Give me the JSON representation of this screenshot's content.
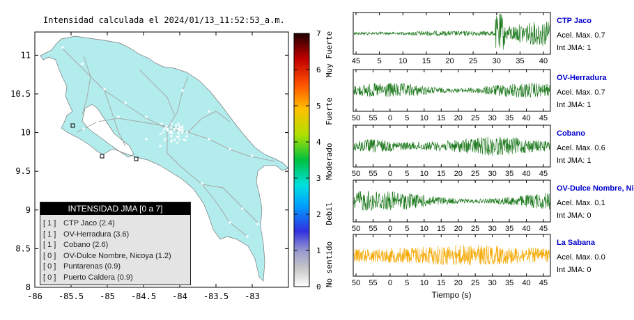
{
  "map_title": "Intensidad calculada el 2024/01/13_11:52:53_a.m.",
  "colors": {
    "land": "#b3ecec",
    "roads": "#a8a8a8",
    "waveform_green": "#1f7a1f",
    "waveform_orange": "#f5a800",
    "station_name": "#0000cc"
  },
  "map": {
    "x_ticks": [
      "-86",
      "-85.5",
      "-85",
      "-84.5",
      "-84",
      "-83.5",
      "-83"
    ],
    "y_ticks": [
      "11",
      "10.5",
      "10",
      "9.5",
      "9",
      "8.5",
      "8"
    ],
    "xlim": [
      -86,
      -82.5
    ],
    "ylim": [
      8,
      11.3
    ]
  },
  "colorbar": {
    "ticks": [
      "0",
      "1",
      "2",
      "3",
      "4",
      "5",
      "6",
      "7"
    ],
    "labels": [
      "No sentido",
      "Debil",
      "Moderado",
      "Fuerte",
      "Muy Fuerte"
    ]
  },
  "legend": {
    "title": "INTENSIDAD JMA [0 a 7]",
    "items": [
      {
        "level": "[ 1 ]",
        "name": "CTP Jaco (2.4)"
      },
      {
        "level": "[ 1 ]",
        "name": "OV-Herradura (3.6)"
      },
      {
        "level": "[ 1 ]",
        "name": "Cobano (2.6)"
      },
      {
        "level": "[ 0 ]",
        "name": "OV-Dulce Nombre, Nicoya (1.2)"
      },
      {
        "level": "[ 0 ]",
        "name": "Puntarenas (0.9)"
      },
      {
        "level": "[ 0 ]",
        "name": "Puerto Caldera (0.9)"
      }
    ]
  },
  "waveforms": {
    "xlabel": "Tiempo (s)",
    "panels": [
      {
        "name": "CTP Jaco",
        "acel": "Acel. Max. 0.7",
        "jma": "Int JMA: 1",
        "color": "#1f7a1f",
        "ticks": [
          "45",
          "5",
          "10",
          "15",
          "20",
          "25",
          "30",
          "35",
          "40"
        ]
      },
      {
        "name": "OV-Herradura",
        "acel": "Acel. Max. 0.7",
        "jma": "Int JMA: 1",
        "color": "#1f7a1f",
        "ticks": [
          "50",
          "55",
          "0",
          "5",
          "10",
          "15",
          "20",
          "25",
          "30",
          "35",
          "40",
          "45"
        ]
      },
      {
        "name": "Cobano",
        "acel": "Acel. Max. 0.6",
        "jma": "Int JMA: 1",
        "color": "#1f7a1f",
        "ticks": [
          "50",
          "55",
          "0",
          "5",
          "10",
          "15",
          "20",
          "25",
          "30",
          "35",
          "40",
          "45"
        ]
      },
      {
        "name": "OV-Dulce Nombre, Nicoya",
        "acel": "Acel. Max. 0.1",
        "jma": "Int JMA: 0",
        "color": "#1f7a1f",
        "ticks": [
          "50",
          "55",
          "0",
          "5",
          "10",
          "15",
          "20",
          "25",
          "30",
          "35",
          "40",
          "45"
        ]
      },
      {
        "name": "La Sabana",
        "acel": "Acel. Max. 0.0",
        "jma": "Int JMA: 0",
        "color": "#f5a800",
        "ticks": [
          "50",
          "55",
          "0",
          "5",
          "10",
          "15",
          "20",
          "25",
          "30",
          "35",
          "40",
          "45"
        ]
      }
    ]
  },
  "chart_data": [
    {
      "type": "map",
      "title": "Intensidad calculada el 2024/01/13_11:52:53_a.m.",
      "xlim": [
        -86,
        -82.5
      ],
      "ylim": [
        8,
        11.3
      ],
      "legend_title": "INTENSIDAD JMA [0 a 7]",
      "stations": [
        {
          "name": "CTP Jaco",
          "jma": 1,
          "value": 2.4
        },
        {
          "name": "OV-Herradura",
          "jma": 1,
          "value": 3.6
        },
        {
          "name": "Cobano",
          "jma": 1,
          "value": 2.6
        },
        {
          "name": "OV-Dulce Nombre, Nicoya",
          "jma": 0,
          "value": 1.2
        },
        {
          "name": "Puntarenas",
          "jma": 0,
          "value": 0.9
        },
        {
          "name": "Puerto Caldera",
          "jma": 0,
          "value": 0.9
        }
      ],
      "colorbar_range": [
        0,
        7
      ]
    },
    {
      "type": "line",
      "xlabel": "Tiempo (s)",
      "series": [
        {
          "name": "CTP Jaco",
          "acel_max": 0.7,
          "int_jma": 1
        },
        {
          "name": "OV-Herradura",
          "acel_max": 0.7,
          "int_jma": 1
        },
        {
          "name": "Cobano",
          "acel_max": 0.6,
          "int_jma": 1
        },
        {
          "name": "OV-Dulce Nombre, Nicoya",
          "acel_max": 0.1,
          "int_jma": 0
        },
        {
          "name": "La Sabana",
          "acel_max": 0.0,
          "int_jma": 0
        }
      ]
    }
  ]
}
